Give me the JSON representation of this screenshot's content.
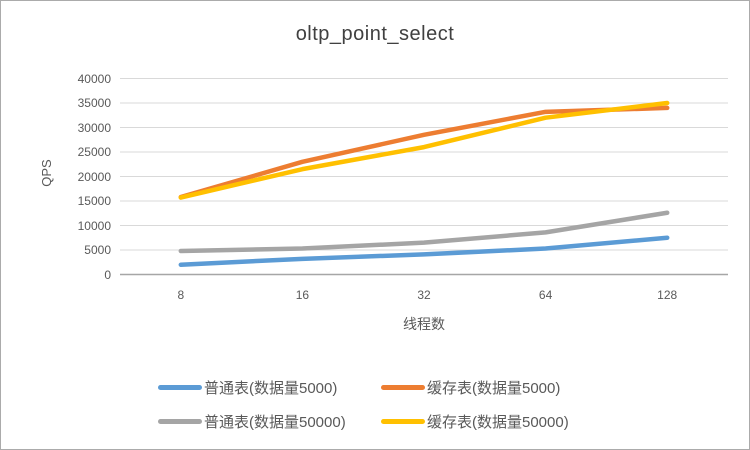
{
  "chart": {
    "title": "oltp_point_select",
    "y_axis_title": "QPS",
    "x_axis_title": "线程数"
  },
  "colors": {
    "gridline": "#d9d9d9",
    "axis_line": "#a6a6a6",
    "text": "#595959",
    "title_text": "#404040"
  },
  "chart_data": {
    "type": "line",
    "title": "oltp_point_select",
    "xlabel": "线程数",
    "ylabel": "QPS",
    "categories": [
      "8",
      "16",
      "32",
      "64",
      "128"
    ],
    "series": [
      {
        "name": "普通表(数据量5000)",
        "color": "#5B9BD5",
        "values": [
          2000,
          3200,
          4100,
          5300,
          7500
        ]
      },
      {
        "name": "缓存表(数据量5000)",
        "color": "#ED7D31",
        "values": [
          15800,
          23000,
          28500,
          33200,
          34000
        ]
      },
      {
        "name": "普通表(数据量50000)",
        "color": "#A5A5A5",
        "values": [
          4800,
          5300,
          6500,
          8600,
          12600
        ]
      },
      {
        "name": "缓存表(数据量50000)",
        "color": "#FFC000",
        "values": [
          15700,
          21500,
          26000,
          32000,
          35000
        ]
      }
    ],
    "ylim": [
      0,
      40000
    ],
    "yticks": [
      0,
      5000,
      10000,
      15000,
      20000,
      25000,
      30000,
      35000,
      40000
    ],
    "grid": true,
    "legend_position": "bottom",
    "legend_rows": [
      [
        "普通表(数据量5000)",
        "缓存表(数据量5000)"
      ],
      [
        "普通表(数据量50000)",
        "缓存表(数据量50000)"
      ]
    ]
  }
}
